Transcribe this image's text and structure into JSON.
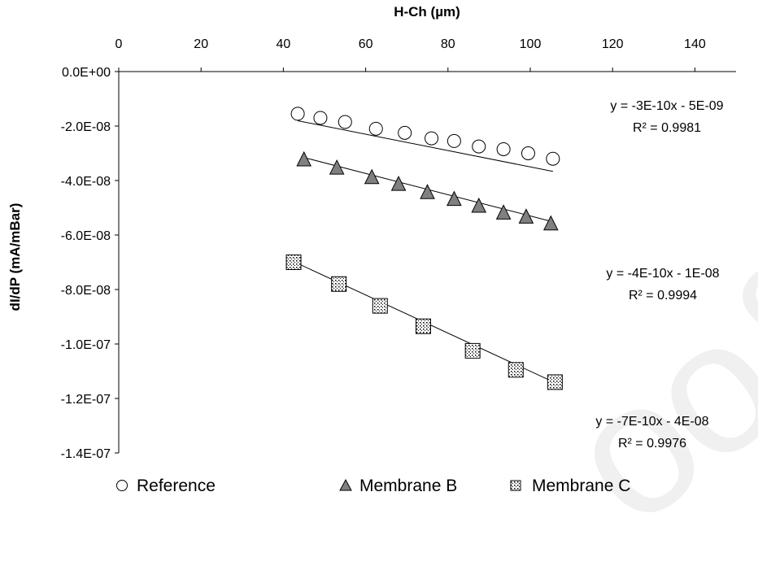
{
  "chart_data": {
    "type": "scatter",
    "xlabel": "H-Ch (µm)",
    "ylabel": "dI/dP (mA/mBar)",
    "xlim": [
      0,
      150
    ],
    "ylim": [
      -1.4e-07,
      0
    ],
    "x_ticks": [
      "0",
      "20",
      "40",
      "60",
      "80",
      "100",
      "120",
      "140"
    ],
    "y_ticks": [
      "0.0E+00",
      "-2.0E-08",
      "-4.0E-08",
      "-6.0E-08",
      "-8.0E-08",
      "-1.0E-07",
      "-1.2E-07",
      "-1.4E-07"
    ],
    "x_axis_position": "top",
    "grid": false,
    "legend_position": "bottom",
    "series": [
      {
        "name": "Reference",
        "marker": "circle-open",
        "x": [
          43.5,
          49,
          55,
          62.5,
          69.5,
          76,
          81.5,
          87.5,
          93.5,
          99.5,
          105.5
        ],
        "y": [
          -1.55e-08,
          -1.7e-08,
          -1.85e-08,
          -2.1e-08,
          -2.25e-08,
          -2.45e-08,
          -2.55e-08,
          -2.75e-08,
          -2.85e-08,
          -3e-08,
          -3.2e-08
        ],
        "trendline": {
          "slope": -3e-10,
          "intercept": -5e-09
        },
        "equation": "y = -3E-10x - 5E-09",
        "r2": "R² = 0.9981"
      },
      {
        "name": "Membrane B",
        "marker": "triangle-filled",
        "x": [
          45,
          53,
          61.5,
          68,
          75,
          81.5,
          87.5,
          93.5,
          99,
          105
        ],
        "y": [
          -3.25e-08,
          -3.55e-08,
          -3.9e-08,
          -4.15e-08,
          -4.45e-08,
          -4.7e-08,
          -4.95e-08,
          -5.2e-08,
          -5.35e-08,
          -5.6e-08
        ],
        "trendline": {
          "slope": -3.9e-10,
          "intercept": -1.4e-08
        },
        "equation": "y = -4E-10x - 1E-08",
        "r2": "R² = 0.9994"
      },
      {
        "name": "Membrane C",
        "marker": "square-dotted",
        "x": [
          42.5,
          53.5,
          63.5,
          74,
          86,
          96.5,
          106
        ],
        "y": [
          -7e-08,
          -7.8e-08,
          -8.6e-08,
          -9.35e-08,
          -1.025e-07,
          -1.095e-07,
          -1.14e-07
        ],
        "trendline": {
          "slope": -7e-10,
          "intercept": -4e-08
        },
        "equation": "y = -7E-10x - 4E-08",
        "r2": "R² = 0.9976"
      }
    ]
  },
  "colors": {
    "triangle_fill": "#808080",
    "marker_stroke": "#000000",
    "line": "#000000"
  }
}
